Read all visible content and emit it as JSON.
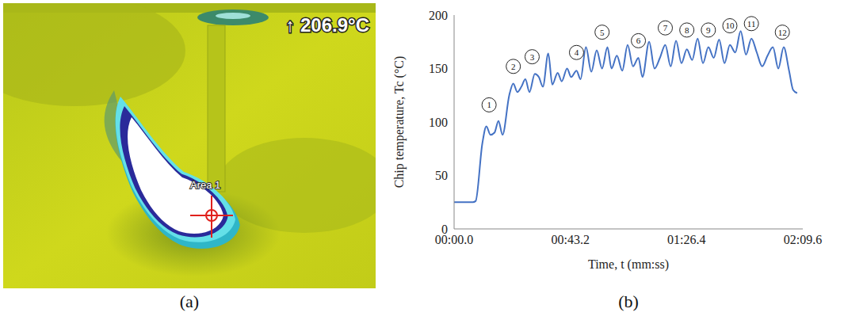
{
  "thermal_image": {
    "panel_label": "(a)",
    "max_label": "↑ 206.9°C",
    "area_label": "Area 1"
  },
  "chart_data": {
    "type": "line",
    "panel_label": "(b)",
    "xlabel": "Time, t (mm:ss)",
    "ylabel": "Chip temperature, Tc (°C)",
    "color": "#4472c4",
    "grid": false,
    "xlim": [
      0,
      129.6
    ],
    "xticks": [
      {
        "value": 0,
        "label": "00:00.0"
      },
      {
        "value": 43.2,
        "label": "00:43.2"
      },
      {
        "value": 86.4,
        "label": "01:26.4"
      },
      {
        "value": 129.6,
        "label": "02:09.6"
      }
    ],
    "ylim": [
      0,
      200
    ],
    "yticks": [
      0,
      50,
      100,
      150,
      200
    ],
    "x": [
      0,
      7,
      8,
      10.5,
      12,
      13.5,
      15,
      16.5,
      18,
      20.5,
      22,
      23.5,
      25,
      26.5,
      28,
      30,
      31.5,
      33,
      35,
      36.5,
      38.5,
      40,
      42,
      43.5,
      45.5,
      47,
      49,
      51,
      53,
      55,
      57,
      58.5,
      60.5,
      62.5,
      64.5,
      66.5,
      68.5,
      70,
      72.5,
      74.5,
      76.5,
      78.5,
      80.5,
      82.5,
      84.5,
      86.5,
      88.5,
      90.5,
      92.5,
      94.5,
      96.5,
      98.5,
      100.5,
      102.5,
      104.5,
      106.5,
      108.5,
      110.5,
      112.5,
      114.5,
      116.5,
      118.5,
      120.5,
      122.5,
      124.5,
      126,
      127.5
    ],
    "values": [
      25,
      25,
      26,
      80,
      96,
      88,
      90,
      101,
      88,
      125,
      136,
      128,
      133,
      140,
      128,
      145,
      142,
      133,
      164,
      135,
      146,
      138,
      150,
      142,
      148,
      140,
      170,
      147,
      167,
      150,
      170,
      150,
      162,
      148,
      172,
      152,
      160,
      142,
      175,
      150,
      160,
      172,
      152,
      176,
      155,
      168,
      158,
      178,
      155,
      170,
      160,
      177,
      155,
      172,
      165,
      185,
      163,
      178,
      165,
      152,
      162,
      170,
      150,
      170,
      148,
      130,
      127
    ],
    "annotations": [
      {
        "text": "1",
        "x": 13,
        "y": 116
      },
      {
        "text": "2",
        "x": 22,
        "y": 152
      },
      {
        "text": "3",
        "x": 29,
        "y": 161
      },
      {
        "text": "4",
        "x": 45.5,
        "y": 165
      },
      {
        "text": "5",
        "x": 55,
        "y": 184
      },
      {
        "text": "6",
        "x": 68.5,
        "y": 176
      },
      {
        "text": "7",
        "x": 78.5,
        "y": 188
      },
      {
        "text": "8",
        "x": 86.5,
        "y": 186
      },
      {
        "text": "9",
        "x": 94.5,
        "y": 186
      },
      {
        "text": "10",
        "x": 102.5,
        "y": 190
      },
      {
        "text": "11",
        "x": 110.5,
        "y": 192
      },
      {
        "text": "12",
        "x": 122,
        "y": 184
      }
    ]
  }
}
